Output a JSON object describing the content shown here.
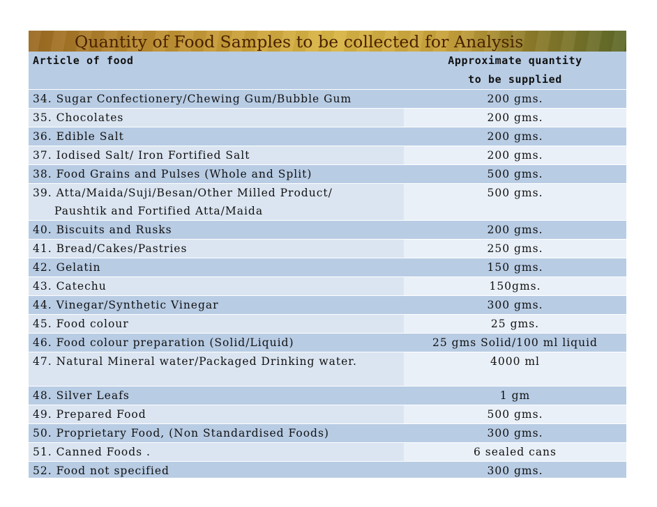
{
  "title": "Quantity of Food Samples to be collected for Analysis",
  "header": {
    "article": "Article of food",
    "quantity_line1": "Approximate quantity",
    "quantity_line2": "to be supplied"
  },
  "rows": [
    {
      "article": "34. Sugar Confectionery/Chewing Gum/Bubble Gum",
      "quantity": "200 gms."
    },
    {
      "article": "35. Chocolates",
      "quantity": "200 gms."
    },
    {
      "article": "36. Edible Salt",
      "quantity": "200 gms."
    },
    {
      "article": "37. Iodised Salt/ Iron Fortified Salt",
      "quantity": "200 gms."
    },
    {
      "article": "38. Food Grains and Pulses (Whole and Split)",
      "quantity": "500 gms."
    },
    {
      "article": "39. Atta/Maida/Suji/Besan/Other Milled Product/",
      "article_line2": "Paushtik and Fortified Atta/Maida",
      "quantity": "500 gms."
    },
    {
      "article": "40. Biscuits and Rusks",
      "quantity": "200 gms."
    },
    {
      "article": "41. Bread/Cakes/Pastries",
      "quantity": "250 gms."
    },
    {
      "article": "42. Gelatin",
      "quantity": "150 gms."
    },
    {
      "article": "43. Catechu",
      "quantity": "150gms."
    },
    {
      "article": "44. Vinegar/Synthetic Vinegar",
      "quantity": "300 gms."
    },
    {
      "article": "45. Food colour",
      "quantity": "25 gms."
    },
    {
      "article": "46. Food colour preparation (Solid/Liquid)",
      "quantity": "25 gms Solid/100 ml liquid"
    },
    {
      "article": "47. Natural Mineral water/Packaged Drinking water.",
      "quantity": "4000 ml"
    },
    {
      "article": "48. Silver Leafs",
      "quantity": "1 gm"
    },
    {
      "article": "49. Prepared Food",
      "quantity": "500 gms."
    },
    {
      "article": "50. Proprietary Food, (Non Standardised Foods)",
      "quantity": "300 gms."
    },
    {
      "article": "51. Canned Foods .",
      "quantity": "6 sealed cans"
    },
    {
      "article": "52. Food not specified",
      "quantity": "300 gms."
    }
  ]
}
